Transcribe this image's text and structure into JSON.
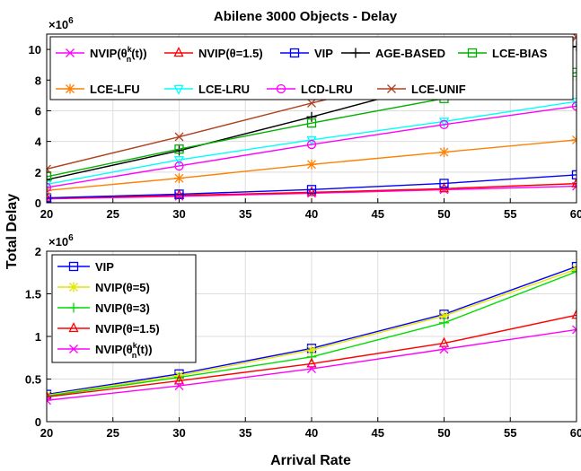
{
  "figure": {
    "title": "Abilene 3000 Objects - Delay",
    "ylabel": "Total Delay",
    "xlabel": "Arrival Rate"
  },
  "chart_data": [
    {
      "type": "line",
      "title": "Abilene 3000 Objects - Delay",
      "xlabel": "",
      "ylabel": "Total Delay",
      "y_multiplier": "×10^6",
      "x": [
        20,
        30,
        40,
        50,
        60
      ],
      "xlim": [
        20,
        60
      ],
      "ylim": [
        0,
        11
      ],
      "xticks": [
        20,
        25,
        30,
        35,
        40,
        45,
        50,
        55,
        60
      ],
      "yticks": [
        0,
        2,
        4,
        6,
        8,
        10
      ],
      "grid": true,
      "legend_position": "top, inside plot",
      "series": [
        {
          "name": "NVIP(θ_n^k(t))",
          "color": "#ff00ff",
          "marker": "x",
          "values": [
            0.25,
            0.42,
            0.62,
            0.85,
            1.08
          ]
        },
        {
          "name": "NVIP(θ=1.5)",
          "color": "#ff0000",
          "marker": "triangle",
          "values": [
            0.29,
            0.48,
            0.68,
            0.92,
            1.25
          ]
        },
        {
          "name": "VIP",
          "color": "#0000ff",
          "marker": "square",
          "values": [
            0.32,
            0.56,
            0.86,
            1.26,
            1.82
          ]
        },
        {
          "name": "AGE-BASED",
          "color": "#000000",
          "marker": "plus",
          "values": [
            1.5,
            3.4,
            5.6,
            7.9,
            10.2
          ]
        },
        {
          "name": "LCE-BIAS",
          "color": "#00b000",
          "marker": "square",
          "values": [
            1.7,
            3.5,
            5.2,
            6.8,
            8.5
          ]
        },
        {
          "name": "LCE-LFU",
          "color": "#ff8000",
          "marker": "star",
          "values": [
            0.8,
            1.6,
            2.5,
            3.3,
            4.1
          ]
        },
        {
          "name": "LCE-LRU",
          "color": "#00ffff",
          "marker": "triangle-down",
          "values": [
            1.2,
            2.8,
            4.1,
            5.3,
            6.6
          ]
        },
        {
          "name": "LCD-LRU",
          "color": "#ff00ff",
          "marker": "circle",
          "values": [
            1.0,
            2.4,
            3.8,
            5.1,
            6.3
          ]
        },
        {
          "name": "LCE-UNIF",
          "color": "#b04020",
          "marker": "x",
          "values": [
            2.2,
            4.3,
            6.5,
            8.6,
            10.8
          ]
        }
      ]
    },
    {
      "type": "line",
      "title": "",
      "xlabel": "Arrival Rate",
      "ylabel": "Total Delay",
      "y_multiplier": "×10^6",
      "x": [
        20,
        30,
        40,
        50,
        60
      ],
      "xlim": [
        20,
        60
      ],
      "ylim": [
        0,
        2
      ],
      "xticks": [
        20,
        25,
        30,
        35,
        40,
        45,
        50,
        55,
        60
      ],
      "yticks": [
        0,
        0.5,
        1,
        1.5,
        2
      ],
      "grid": true,
      "legend_position": "top-left",
      "series": [
        {
          "name": "VIP",
          "color": "#0000ff",
          "marker": "square",
          "values": [
            0.32,
            0.56,
            0.86,
            1.26,
            1.82
          ]
        },
        {
          "name": "NVIP(θ=5)",
          "color": "#e6e600",
          "marker": "star",
          "values": [
            0.31,
            0.54,
            0.84,
            1.24,
            1.79
          ]
        },
        {
          "name": "NVIP(θ=3)",
          "color": "#00dd00",
          "marker": "plus",
          "values": [
            0.3,
            0.52,
            0.76,
            1.16,
            1.76
          ]
        },
        {
          "name": "NVIP(θ=1.5)",
          "color": "#ff0000",
          "marker": "triangle",
          "values": [
            0.29,
            0.48,
            0.68,
            0.92,
            1.25
          ]
        },
        {
          "name": "NVIP(θ_n^k(t))",
          "color": "#ff00ff",
          "marker": "x",
          "values": [
            0.25,
            0.42,
            0.62,
            0.85,
            1.08
          ]
        }
      ]
    }
  ]
}
